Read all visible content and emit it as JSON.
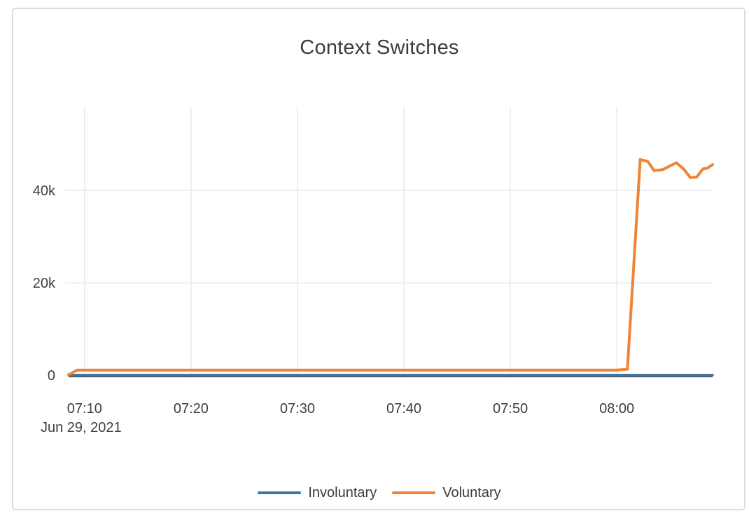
{
  "chart_data": {
    "type": "line",
    "title": "Context Switches",
    "x_axis": {
      "date_label": "Jun 29, 2021",
      "range_minutes": [
        8.5,
        69
      ],
      "ticks": [
        {
          "label": "07:10",
          "minutes": 10
        },
        {
          "label": "07:20",
          "minutes": 20
        },
        {
          "label": "07:30",
          "minutes": 30
        },
        {
          "label": "07:40",
          "minutes": 40
        },
        {
          "label": "07:50",
          "minutes": 50
        },
        {
          "label": "08:00",
          "minutes": 60
        }
      ],
      "grid": true
    },
    "y_axis": {
      "range": [
        -600,
        58200
      ],
      "ticks": [
        {
          "label": "0",
          "value": 0
        },
        {
          "label": "20k",
          "value": 20000
        },
        {
          "label": "40k",
          "value": 40000
        }
      ],
      "grid": true,
      "zeroline": true
    },
    "legend_position": "bottom-center",
    "series": [
      {
        "name": "Involuntary",
        "color": "#3e76a8",
        "points": [
          [
            8.5,
            30
          ],
          [
            15,
            30
          ],
          [
            20,
            30
          ],
          [
            25,
            30
          ],
          [
            30,
            30
          ],
          [
            35,
            30
          ],
          [
            40,
            30
          ],
          [
            45,
            30
          ],
          [
            50,
            30
          ],
          [
            55,
            35
          ],
          [
            60,
            40
          ],
          [
            62,
            50
          ],
          [
            65,
            50
          ],
          [
            67,
            50
          ],
          [
            69,
            50
          ]
        ]
      },
      {
        "name": "Voluntary",
        "color": "#ee8438",
        "points": [
          [
            8.5,
            100
          ],
          [
            9.3,
            1100
          ],
          [
            15,
            1100
          ],
          [
            20,
            1100
          ],
          [
            25,
            1100
          ],
          [
            30,
            1100
          ],
          [
            35,
            1100
          ],
          [
            40,
            1100
          ],
          [
            45,
            1100
          ],
          [
            50,
            1100
          ],
          [
            55,
            1100
          ],
          [
            60,
            1100
          ],
          [
            61,
            1300
          ],
          [
            62.2,
            46700
          ],
          [
            62.9,
            46300
          ],
          [
            63.5,
            44300
          ],
          [
            64.3,
            44500
          ],
          [
            65.6,
            46000
          ],
          [
            66.3,
            44600
          ],
          [
            66.9,
            42800
          ],
          [
            67.5,
            42900
          ],
          [
            68.1,
            44700
          ],
          [
            68.5,
            44800
          ],
          [
            69,
            45600
          ]
        ]
      }
    ]
  },
  "colors": {
    "grid": "#eaeaea",
    "zeroline": "#3c3c3c",
    "tick_text": "#3f3f3f",
    "title_text": "#3b3b3b",
    "card_border": "#dcdcdc"
  }
}
